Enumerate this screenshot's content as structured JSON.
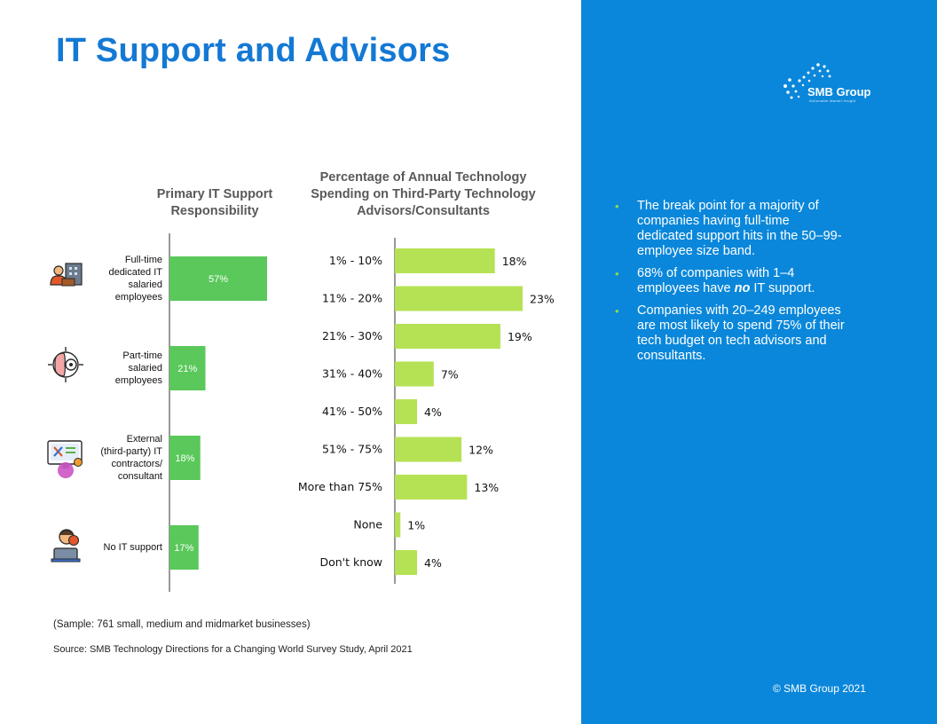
{
  "page": {
    "title": "IT Support and Advisors"
  },
  "logo": {
    "name": "SMB Group",
    "tagline": "Actionable Market Insight"
  },
  "bullets": [
    {
      "text": "The break point for a majority of companies having full-time dedicated support hits in the 50–99-employee size band."
    },
    {
      "parts": [
        "68% of companies with 1–4 employees have ",
        "no",
        " IT support."
      ]
    },
    {
      "text": "Companies with 20–249 employees are most likely to spend 75% of their tech budget on tech advisors and consultants."
    }
  ],
  "footer": {
    "sample": "(Sample: 761 small, medium and midmarket businesses)",
    "source": "Source: SMB Technology Directions for a Changing World Survey Study, April 2021",
    "copyright": "© SMB Group 2021"
  },
  "colors": {
    "panel": "#0a87da",
    "title": "#1479d4",
    "left_bar": "#5ac85a",
    "right_bar": "#b5e254"
  },
  "chart_data": [
    {
      "type": "bar",
      "orientation": "horizontal",
      "title": "Primary IT Support Responsibility",
      "categories": [
        "Full-time dedicated IT salaried employees",
        "Part-time salaried employees",
        "External (third-party) IT contractors/ consultant",
        "No IT support"
      ],
      "category_lines": [
        [
          "Full-time",
          "dedicated IT",
          "salaried",
          "employees"
        ],
        [
          "Part-time",
          "salaried",
          "employees"
        ],
        [
          "External",
          "(third-party) IT",
          "contractors/",
          "consultant"
        ],
        [
          "No IT support"
        ]
      ],
      "icons": [
        "office-worker-icon",
        "brain-gear-icon",
        "monitor-tools-icon",
        "support-agent-icon"
      ],
      "values": [
        57,
        21,
        18,
        17
      ],
      "labels": [
        "57%",
        "21%",
        "18%",
        "17%"
      ],
      "xlim": [
        0,
        100
      ]
    },
    {
      "type": "bar",
      "orientation": "horizontal",
      "title": "Percentage of Annual Technology Spending on Third-Party Technology Advisors/Consultants",
      "categories": [
        "1% - 10%",
        "11% - 20%",
        "21% - 30%",
        "31% - 40%",
        "41% - 50%",
        "51% - 75%",
        "More than 75%",
        "None",
        "Don't know"
      ],
      "values": [
        18,
        23,
        19,
        7,
        4,
        12,
        13,
        1,
        4
      ],
      "labels": [
        "18%",
        "23%",
        "19%",
        "7%",
        "4%",
        "12%",
        "13%",
        "1%",
        "4%"
      ],
      "xlim": [
        0,
        100
      ]
    }
  ]
}
